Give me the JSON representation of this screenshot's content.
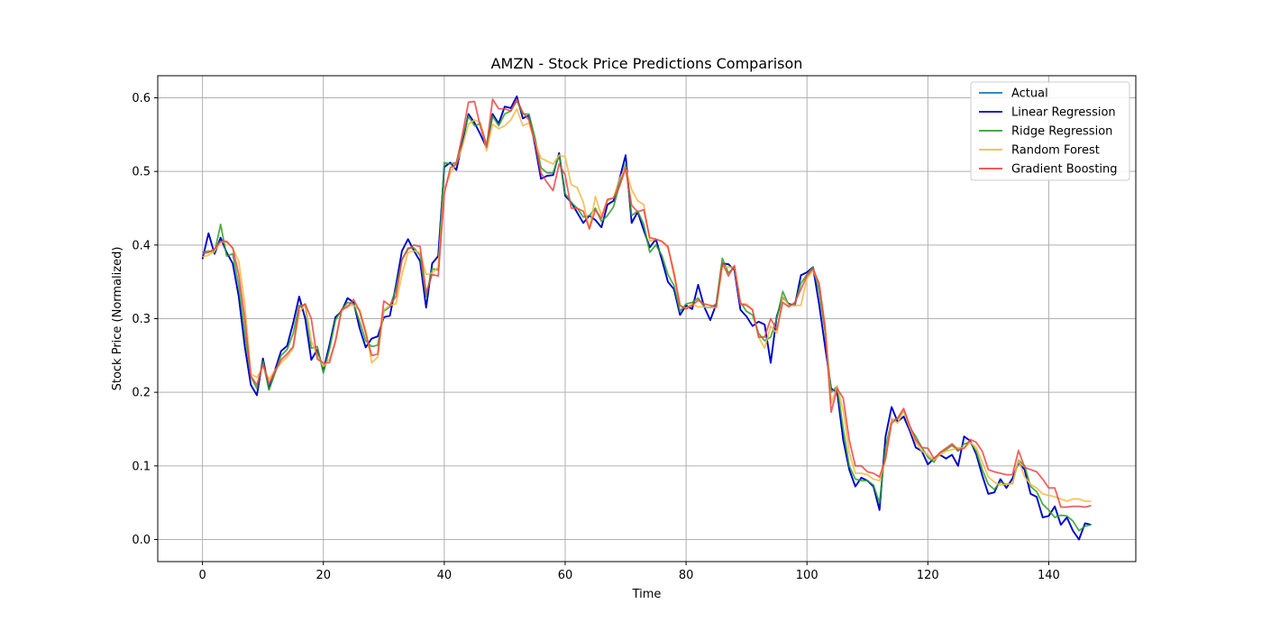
{
  "chart_data": {
    "type": "line",
    "title": "AMZN - Stock Price Predictions Comparison",
    "xlabel": "Time",
    "ylabel": "Stock Price (Normalized)",
    "xlim": [
      -7.4,
      154.4
    ],
    "ylim": [
      -0.03,
      0.63
    ],
    "xticks": [
      0,
      20,
      40,
      60,
      80,
      100,
      120,
      140
    ],
    "xtick_labels": [
      "0",
      "20",
      "40",
      "60",
      "80",
      "100",
      "120",
      "140"
    ],
    "yticks": [
      0.0,
      0.1,
      0.2,
      0.3,
      0.4,
      0.5,
      0.6
    ],
    "ytick_labels": [
      "0.0",
      "0.1",
      "0.2",
      "0.3",
      "0.4",
      "0.5",
      "0.6"
    ],
    "grid": true,
    "legend_position": "top-right",
    "series": [
      {
        "name": "Actual",
        "color": "#1f77b4",
        "values": [
          0.381,
          0.416,
          0.388,
          0.41,
          0.39,
          0.375,
          0.33,
          0.262,
          0.21,
          0.196,
          0.246,
          0.205,
          0.23,
          0.256,
          0.263,
          0.294,
          0.33,
          0.3,
          0.244,
          0.258,
          0.23,
          0.264,
          0.302,
          0.31,
          0.328,
          0.322,
          0.287,
          0.261,
          0.273,
          0.276,
          0.302,
          0.304,
          0.345,
          0.392,
          0.408,
          0.392,
          0.378,
          0.315,
          0.375,
          0.385,
          0.506,
          0.512,
          0.502,
          0.54,
          0.578,
          0.566,
          0.55,
          0.532,
          0.578,
          0.565,
          0.588,
          0.586,
          0.602,
          0.572,
          0.576,
          0.536,
          0.49,
          0.494,
          0.495,
          0.525,
          0.467,
          0.458,
          0.444,
          0.43,
          0.44,
          0.434,
          0.424,
          0.455,
          0.46,
          0.49,
          0.522,
          0.43,
          0.445,
          0.42,
          0.397,
          0.408,
          0.38,
          0.35,
          0.34,
          0.305,
          0.318,
          0.313,
          0.346,
          0.316,
          0.298,
          0.32,
          0.375,
          0.374,
          0.366,
          0.312,
          0.303,
          0.29,
          0.296,
          0.292,
          0.24,
          0.303,
          0.329,
          0.32,
          0.318,
          0.359,
          0.363,
          0.37,
          0.32,
          0.262,
          0.205,
          0.2,
          0.135,
          0.095,
          0.072,
          0.084,
          0.08,
          0.072,
          0.04,
          0.14,
          0.18,
          0.16,
          0.167,
          0.148,
          0.125,
          0.12,
          0.102,
          0.11,
          0.115,
          0.11,
          0.115,
          0.1,
          0.14,
          0.134,
          0.116,
          0.087,
          0.062,
          0.064,
          0.082,
          0.07,
          0.083,
          0.104,
          0.095,
          0.062,
          0.058,
          0.03,
          0.032,
          0.045,
          0.02,
          0.03,
          0.012,
          0.0,
          0.022,
          0.02
        ]
      },
      {
        "name": "Linear Regression",
        "color": "#0000cc",
        "values": [
          0.381,
          0.416,
          0.388,
          0.41,
          0.39,
          0.375,
          0.33,
          0.262,
          0.21,
          0.196,
          0.246,
          0.205,
          0.23,
          0.256,
          0.263,
          0.294,
          0.33,
          0.3,
          0.244,
          0.258,
          0.23,
          0.264,
          0.302,
          0.31,
          0.328,
          0.322,
          0.287,
          0.261,
          0.273,
          0.276,
          0.302,
          0.304,
          0.345,
          0.392,
          0.408,
          0.392,
          0.378,
          0.315,
          0.375,
          0.385,
          0.506,
          0.512,
          0.502,
          0.54,
          0.578,
          0.566,
          0.55,
          0.532,
          0.578,
          0.565,
          0.588,
          0.586,
          0.602,
          0.572,
          0.576,
          0.536,
          0.49,
          0.494,
          0.495,
          0.525,
          0.467,
          0.458,
          0.444,
          0.43,
          0.44,
          0.434,
          0.424,
          0.455,
          0.46,
          0.49,
          0.522,
          0.43,
          0.445,
          0.42,
          0.397,
          0.408,
          0.38,
          0.35,
          0.34,
          0.305,
          0.318,
          0.313,
          0.346,
          0.316,
          0.298,
          0.32,
          0.375,
          0.374,
          0.366,
          0.312,
          0.303,
          0.29,
          0.296,
          0.292,
          0.24,
          0.303,
          0.329,
          0.32,
          0.318,
          0.359,
          0.363,
          0.37,
          0.32,
          0.262,
          0.205,
          0.2,
          0.135,
          0.095,
          0.072,
          0.084,
          0.08,
          0.072,
          0.04,
          0.14,
          0.18,
          0.16,
          0.167,
          0.148,
          0.125,
          0.12,
          0.102,
          0.11,
          0.115,
          0.11,
          0.115,
          0.1,
          0.14,
          0.134,
          0.116,
          0.087,
          0.062,
          0.064,
          0.082,
          0.07,
          0.083,
          0.104,
          0.095,
          0.062,
          0.058,
          0.03,
          0.032,
          0.045,
          0.02,
          0.03,
          0.012,
          0.0,
          0.022,
          0.02
        ]
      },
      {
        "name": "Ridge Regression",
        "color": "#2ca02c",
        "values": [
          0.39,
          0.392,
          0.39,
          0.428,
          0.385,
          0.388,
          0.345,
          0.28,
          0.222,
          0.205,
          0.242,
          0.203,
          0.226,
          0.25,
          0.258,
          0.28,
          0.318,
          0.318,
          0.26,
          0.262,
          0.226,
          0.258,
          0.298,
          0.312,
          0.322,
          0.32,
          0.296,
          0.27,
          0.262,
          0.264,
          0.31,
          0.316,
          0.34,
          0.38,
          0.396,
          0.396,
          0.386,
          0.33,
          0.368,
          0.366,
          0.512,
          0.51,
          0.512,
          0.545,
          0.575,
          0.562,
          0.565,
          0.535,
          0.575,
          0.562,
          0.578,
          0.582,
          0.596,
          0.578,
          0.578,
          0.546,
          0.505,
          0.498,
          0.498,
          0.522,
          0.47,
          0.458,
          0.45,
          0.438,
          0.44,
          0.45,
          0.432,
          0.44,
          0.452,
          0.482,
          0.51,
          0.44,
          0.446,
          0.428,
          0.39,
          0.4,
          0.386,
          0.36,
          0.345,
          0.31,
          0.32,
          0.322,
          0.328,
          0.316,
          0.315,
          0.32,
          0.382,
          0.362,
          0.37,
          0.322,
          0.31,
          0.305,
          0.28,
          0.27,
          0.275,
          0.3,
          0.337,
          0.318,
          0.32,
          0.348,
          0.36,
          0.37,
          0.338,
          0.282,
          0.2,
          0.208,
          0.15,
          0.1,
          0.082,
          0.08,
          0.08,
          0.074,
          0.05,
          0.125,
          0.162,
          0.164,
          0.175,
          0.152,
          0.14,
          0.125,
          0.112,
          0.105,
          0.118,
          0.122,
          0.128,
          0.12,
          0.13,
          0.132,
          0.12,
          0.095,
          0.075,
          0.068,
          0.078,
          0.075,
          0.076,
          0.108,
          0.1,
          0.072,
          0.065,
          0.048,
          0.04,
          0.03,
          0.033,
          0.032,
          0.025,
          0.012,
          0.018,
          0.02
        ]
      },
      {
        "name": "Random Forest",
        "color": "#f5b942",
        "values": [
          0.384,
          0.386,
          0.392,
          0.404,
          0.404,
          0.396,
          0.378,
          0.32,
          0.225,
          0.22,
          0.235,
          0.218,
          0.23,
          0.24,
          0.248,
          0.26,
          0.308,
          0.32,
          0.27,
          0.25,
          0.235,
          0.245,
          0.268,
          0.31,
          0.318,
          0.318,
          0.312,
          0.285,
          0.24,
          0.248,
          0.312,
          0.318,
          0.32,
          0.36,
          0.39,
          0.392,
          0.39,
          0.36,
          0.362,
          0.37,
          0.475,
          0.498,
          0.51,
          0.534,
          0.564,
          0.57,
          0.566,
          0.528,
          0.564,
          0.558,
          0.562,
          0.57,
          0.585,
          0.562,
          0.566,
          0.54,
          0.518,
          0.514,
          0.51,
          0.522,
          0.52,
          0.482,
          0.478,
          0.458,
          0.422,
          0.466,
          0.44,
          0.46,
          0.464,
          0.49,
          0.505,
          0.475,
          0.46,
          0.455,
          0.405,
          0.408,
          0.405,
          0.396,
          0.365,
          0.318,
          0.314,
          0.32,
          0.316,
          0.316,
          0.315,
          0.315,
          0.37,
          0.37,
          0.37,
          0.32,
          0.32,
          0.312,
          0.275,
          0.26,
          0.29,
          0.28,
          0.33,
          0.318,
          0.318,
          0.318,
          0.355,
          0.365,
          0.348,
          0.29,
          0.185,
          0.208,
          0.175,
          0.118,
          0.09,
          0.09,
          0.088,
          0.082,
          0.08,
          0.108,
          0.165,
          0.158,
          0.175,
          0.152,
          0.132,
          0.12,
          0.115,
          0.108,
          0.115,
          0.12,
          0.122,
          0.125,
          0.124,
          0.132,
          0.125,
          0.105,
          0.085,
          0.078,
          0.074,
          0.075,
          0.076,
          0.108,
          0.085,
          0.075,
          0.07,
          0.062,
          0.06,
          0.058,
          0.055,
          0.052,
          0.055,
          0.055,
          0.052,
          0.052
        ]
      },
      {
        "name": "Gradient Boosting",
        "color": "#ef4444",
        "values": [
          0.388,
          0.39,
          0.395,
          0.405,
          0.405,
          0.396,
          0.36,
          0.3,
          0.222,
          0.21,
          0.238,
          0.212,
          0.228,
          0.244,
          0.252,
          0.262,
          0.315,
          0.32,
          0.3,
          0.245,
          0.24,
          0.24,
          0.27,
          0.312,
          0.316,
          0.326,
          0.31,
          0.28,
          0.25,
          0.252,
          0.324,
          0.318,
          0.33,
          0.38,
          0.394,
          0.4,
          0.398,
          0.335,
          0.36,
          0.358,
          0.47,
          0.505,
          0.51,
          0.55,
          0.594,
          0.595,
          0.56,
          0.534,
          0.598,
          0.585,
          0.585,
          0.582,
          0.598,
          0.58,
          0.57,
          0.54,
          0.498,
          0.485,
          0.474,
          0.51,
          0.495,
          0.45,
          0.45,
          0.446,
          0.422,
          0.448,
          0.436,
          0.462,
          0.464,
          0.48,
          0.504,
          0.454,
          0.445,
          0.448,
          0.41,
          0.408,
          0.405,
          0.398,
          0.36,
          0.318,
          0.313,
          0.318,
          0.325,
          0.32,
          0.318,
          0.316,
          0.376,
          0.358,
          0.372,
          0.32,
          0.318,
          0.312,
          0.275,
          0.275,
          0.3,
          0.285,
          0.322,
          0.316,
          0.322,
          0.34,
          0.358,
          0.368,
          0.348,
          0.288,
          0.173,
          0.205,
          0.192,
          0.135,
          0.1,
          0.1,
          0.092,
          0.09,
          0.085,
          0.11,
          0.158,
          0.165,
          0.178,
          0.155,
          0.135,
          0.125,
          0.124,
          0.11,
          0.118,
          0.124,
          0.13,
          0.122,
          0.124,
          0.136,
          0.132,
          0.12,
          0.095,
          0.092,
          0.09,
          0.088,
          0.088,
          0.121,
          0.098,
          0.095,
          0.092,
          0.082,
          0.07,
          0.07,
          0.044,
          0.044,
          0.045,
          0.045,
          0.044,
          0.046
        ]
      }
    ]
  }
}
